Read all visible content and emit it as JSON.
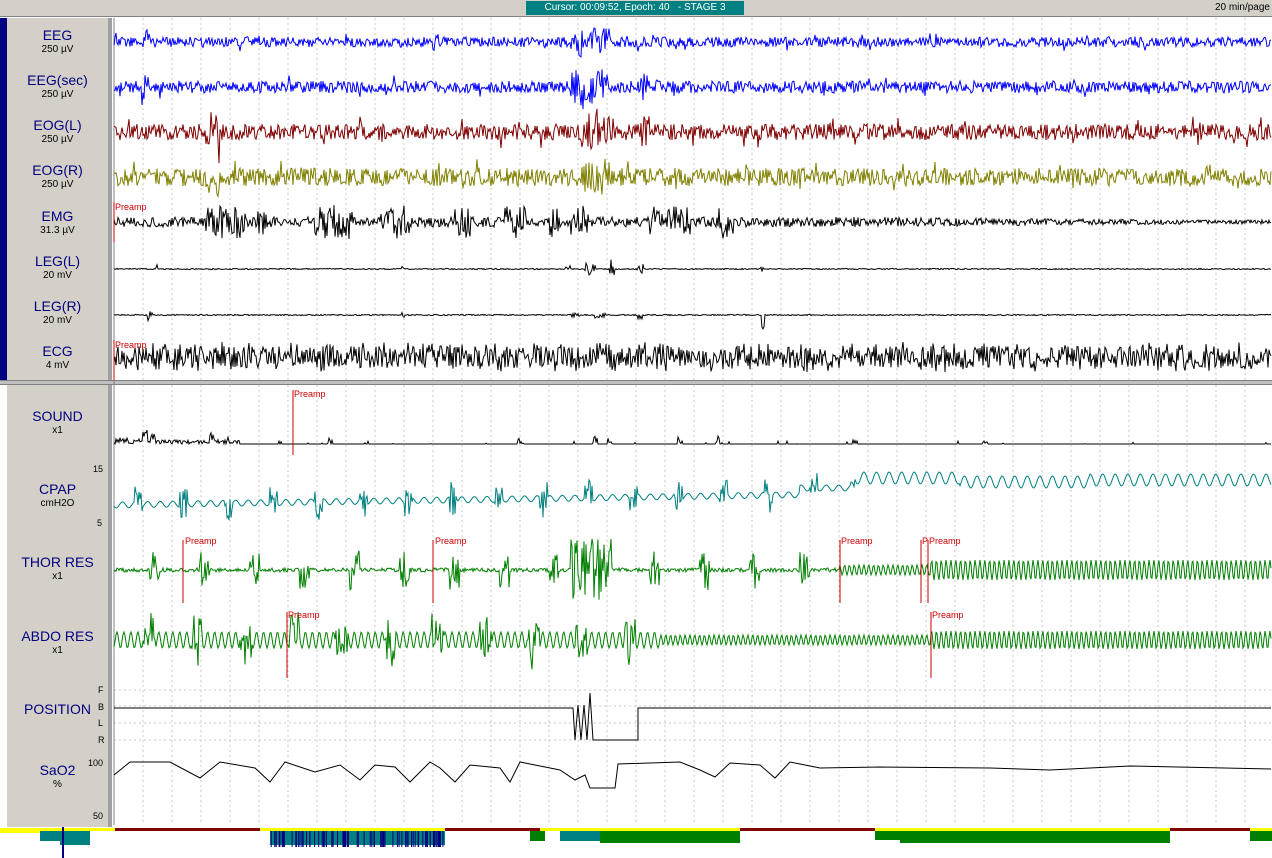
{
  "header": {
    "cursor_info": "Cursor: 00:09:52, Epoch: 40   - STAGE 3",
    "page_scale": "20 min/page"
  },
  "colors": {
    "eeg": "#0000ff",
    "eog_l": "#800000",
    "eog_r": "#808000",
    "black": "#000000",
    "cpap": "#008080",
    "resp": "#008000",
    "event": "#cc0000",
    "label_text": "#000080"
  },
  "channels": [
    {
      "name": "EEG",
      "unit": "250 µV"
    },
    {
      "name": "EEG(sec)",
      "unit": "250 µV"
    },
    {
      "name": "EOG(L)",
      "unit": "250 µV"
    },
    {
      "name": "EOG(R)",
      "unit": "250 µV"
    },
    {
      "name": "EMG",
      "unit": "31.3 µV"
    },
    {
      "name": "LEG(L)",
      "unit": "20 mV"
    },
    {
      "name": "LEG(R)",
      "unit": "20 mV"
    },
    {
      "name": "ECG",
      "unit": "4 mV"
    },
    {
      "name": "SOUND",
      "unit": "x1"
    },
    {
      "name": "CPAP",
      "unit": "cmH2O"
    },
    {
      "name": "THOR RES",
      "unit": "x1"
    },
    {
      "name": "ABDO RES",
      "unit": "x1"
    },
    {
      "name": "POSITION",
      "unit": ""
    },
    {
      "name": "SaO2",
      "unit": "%"
    }
  ],
  "cpap_scale": {
    "max": "15",
    "min": "5"
  },
  "sao2_scale": {
    "max": "100",
    "min": "50"
  },
  "position_levels": [
    "F",
    "B",
    "L",
    "R"
  ],
  "event_label": "Preamp",
  "event_label_short": "P"
}
